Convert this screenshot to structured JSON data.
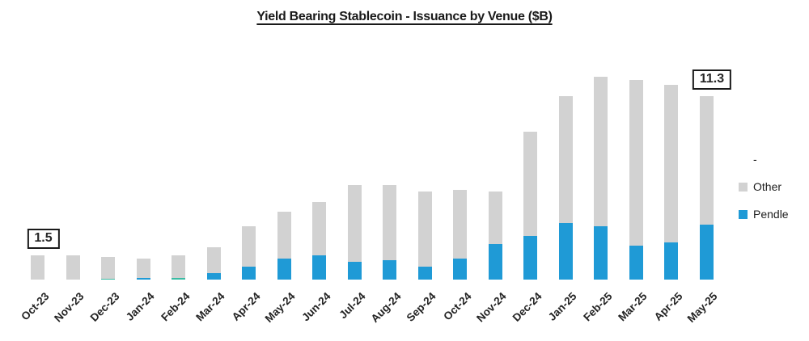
{
  "title": "Yield Bearing Stablecoin - Issuance by Venue ($B)",
  "legend": {
    "items": [
      {
        "label": "-",
        "color": ""
      },
      {
        "label": "Other",
        "color": "#D2D2D2"
      },
      {
        "label": "Pendle",
        "color": "#1F9AD6"
      }
    ]
  },
  "annotations": [
    {
      "label": "1.5",
      "category": "Oct-23"
    },
    {
      "label": "11.3",
      "category": "May-25"
    }
  ],
  "colors": {
    "other": "#D2D2D2",
    "pendle": "#1F9AD6",
    "dash_series": "#3ABCA4",
    "title_text": "#1a1a1a",
    "background": "#ffffff"
  },
  "chart_data": {
    "type": "bar",
    "stacked": true,
    "title": "Yield Bearing Stablecoin - Issuance by Venue ($B)",
    "xlabel": "",
    "ylabel": "",
    "ylim": [
      0,
      13
    ],
    "grid": false,
    "legend_position": "right",
    "categories": [
      "Oct-23",
      "Nov-23",
      "Dec-23",
      "Jan-24",
      "Feb-24",
      "Mar-24",
      "Apr-24",
      "May-24",
      "Jun-24",
      "Jul-24",
      "Aug-24",
      "Sep-24",
      "Oct-24",
      "Nov-24",
      "Dec-24",
      "Jan-25",
      "Feb-25",
      "Mar-25",
      "Apr-25",
      "May-25"
    ],
    "series": [
      {
        "name": "Pendle",
        "color": "#1F9AD6",
        "values": [
          0,
          0,
          0,
          0.1,
          0,
          0.4,
          0.8,
          1.3,
          1.5,
          1.1,
          1.2,
          0.8,
          1.3,
          2.2,
          2.7,
          3.5,
          3.3,
          2.1,
          2.3,
          3.4
        ]
      },
      {
        "name": "-",
        "color": "#3ABCA4",
        "values": [
          0,
          0,
          0.05,
          0,
          0.1,
          0,
          0,
          0,
          0,
          0,
          0,
          0,
          0,
          0,
          0,
          0,
          0,
          0,
          0,
          0
        ]
      },
      {
        "name": "Other",
        "color": "#D2D2D2",
        "values": [
          1.5,
          1.5,
          1.35,
          1.2,
          1.4,
          1.6,
          2.5,
          2.9,
          3.3,
          4.7,
          4.6,
          4.6,
          4.2,
          3.2,
          6.4,
          7.8,
          9.2,
          10.2,
          9.7,
          7.9
        ]
      }
    ],
    "totals": [
      1.5,
      1.5,
      1.4,
      1.3,
      1.5,
      2.0,
      3.3,
      4.2,
      4.8,
      5.8,
      5.8,
      5.4,
      5.5,
      5.4,
      9.1,
      11.3,
      12.5,
      12.3,
      12.0,
      11.3
    ],
    "annotated_totals": {
      "Oct-23": 1.5,
      "May-25": 11.3
    }
  }
}
